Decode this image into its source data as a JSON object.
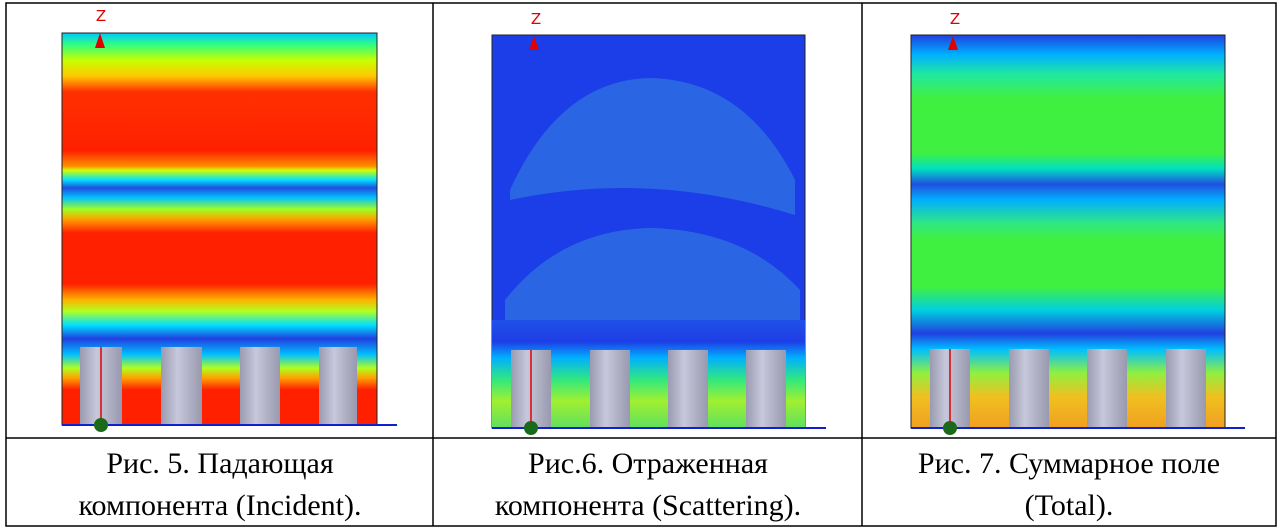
{
  "figures": [
    {
      "axis_label": "Z",
      "caption": [
        "Рис. 5.  Падающая",
        "компонента (Incident)."
      ]
    },
    {
      "axis_label": "Z",
      "caption": [
        "Рис.6. Отраженная",
        "компонента (Scattering)."
      ]
    },
    {
      "axis_label": "Z",
      "caption": [
        "Рис. 7. Суммарное поле",
        "(Total)."
      ]
    }
  ]
}
